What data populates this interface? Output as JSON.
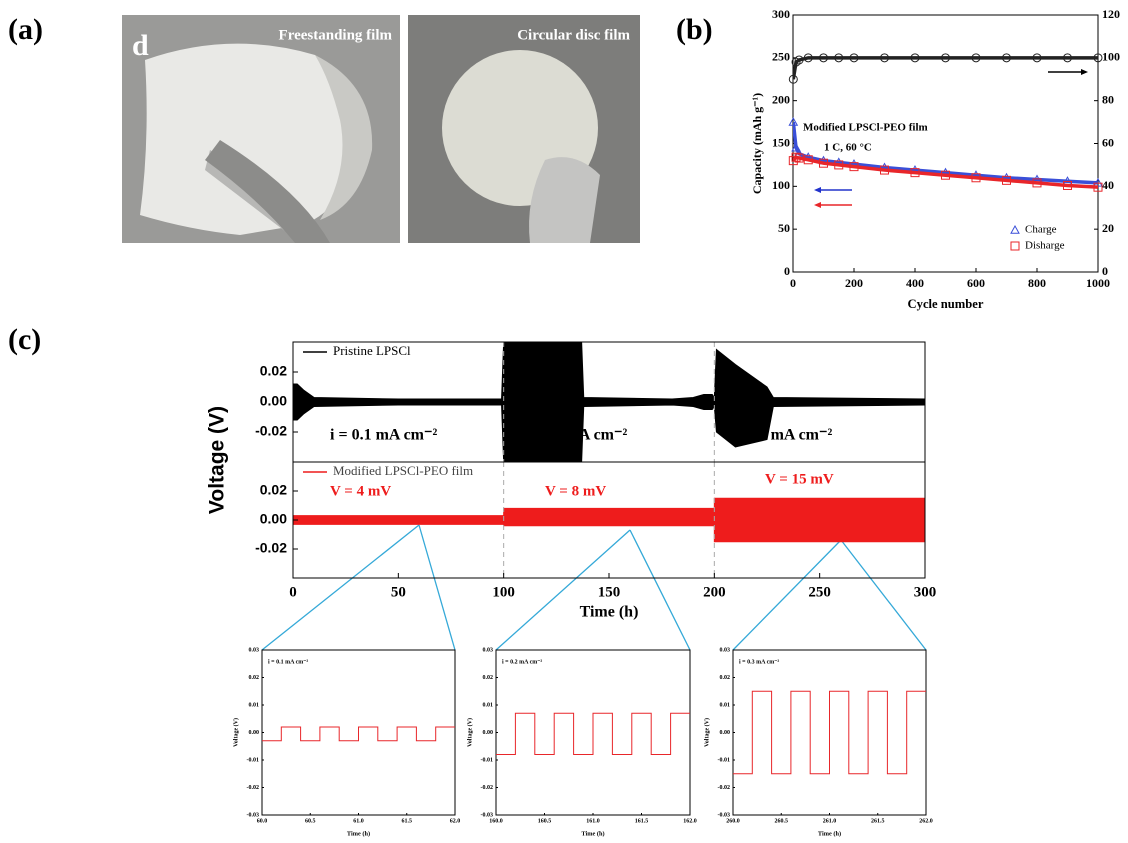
{
  "panel_labels": [
    "(a)",
    "(b)",
    "(c)"
  ],
  "photos": {
    "corner_letter": "d",
    "captions": [
      "Freestanding film",
      "Circular disc film"
    ]
  },
  "chart_data": [
    {
      "type": "line",
      "xlabel": "Cycle number",
      "ylabel": "Capacity (mAh g⁻¹)",
      "annotations": [
        "Modified LPSCl-PEO film",
        "1 C, 60 °C"
      ],
      "x": [
        1,
        10,
        20,
        50,
        100,
        150,
        200,
        300,
        400,
        500,
        600,
        700,
        800,
        900,
        1000
      ],
      "series": [
        {
          "name": "Charge",
          "color": "#3a4fd8",
          "marker": "triangle",
          "values": [
            175,
            145,
            138,
            134,
            130,
            128,
            126,
            122,
            119,
            116,
            113,
            110,
            108,
            106,
            104
          ]
        },
        {
          "name": "Disharge",
          "color": "#e8262a",
          "marker": "square",
          "values": [
            130,
            134,
            133,
            131,
            127,
            125,
            123,
            119,
            116,
            113,
            110,
            107,
            104,
            101,
            99
          ]
        },
        {
          "color": "#222222",
          "marker": "circle",
          "axis": "y2",
          "values": [
            90,
            98,
            99,
            100,
            100,
            100,
            100,
            100,
            100,
            100,
            100,
            100,
            100,
            100,
            100
          ]
        }
      ],
      "xlim": [
        0,
        1000
      ],
      "xticks": [
        0,
        200,
        400,
        600,
        800,
        1000
      ],
      "ylim": [
        0,
        300
      ],
      "yticks": [
        0,
        50,
        100,
        150,
        200,
        250,
        300
      ],
      "y2lim": [
        0,
        120
      ],
      "y2ticks": [
        0,
        20,
        40,
        60,
        80,
        100,
        120
      ]
    },
    {
      "type": "band",
      "xlabel": "Time (h)",
      "ylabel": "Voltage (V)",
      "xlim": [
        0,
        300
      ],
      "xticks": [
        0,
        50,
        100,
        150,
        200,
        250,
        300
      ],
      "vlines": [
        100,
        200
      ],
      "panels": [
        {
          "ylim": [
            -0.04,
            0.04
          ],
          "yticks": [
            0.02,
            {
              "value": 0,
              "label": "0.00"
            },
            -0.02
          ],
          "annotations": [
            "i = 0.1 mA cm⁻²",
            "i = 0.2 mA cm⁻²",
            "i = 0.3 mA cm⁻²"
          ],
          "series": [
            {
              "name": "Pristine LPSCl",
              "color": "#000000",
              "x": [
                0,
                2,
                5,
                10,
                50,
                99,
                100,
                101,
                137,
                138,
                180,
                190,
                195,
                199,
                200,
                201,
                210,
                225,
                228,
                300
              ],
              "values": [
                0.012,
                0.012,
                0.008,
                0.003,
                0.002,
                0.002,
                0.04,
                0.04,
                0.04,
                0.003,
                0.002,
                0.003,
                0.005,
                0.005,
                0.003,
                0.035,
                0.025,
                0.01,
                0.003,
                0.002
              ],
              "lower": [
                -0.012,
                -0.012,
                -0.008,
                -0.003,
                -0.002,
                -0.002,
                -0.04,
                -0.04,
                -0.04,
                -0.003,
                -0.002,
                -0.003,
                -0.005,
                -0.005,
                -0.003,
                -0.02,
                -0.03,
                -0.025,
                -0.003,
                -0.002
              ]
            }
          ]
        },
        {
          "ylim": [
            -0.04,
            0.04
          ],
          "yticks": [
            0.02,
            {
              "value": 0,
              "label": "0.00"
            },
            -0.02
          ],
          "annotations": [
            "V = 4 mV",
            "V = 8 mV",
            "V = 15 mV"
          ],
          "series": [
            {
              "name": "Modified LPSCl-PEO film",
              "color": "#ee1c1c",
              "x": [
                0,
                100,
                100,
                200,
                200,
                300
              ],
              "values": [
                0.003,
                0.003,
                0.008,
                0.008,
                0.015,
                0.015
              ],
              "lower": [
                -0.003,
                -0.003,
                -0.004,
                -0.004,
                -0.015,
                -0.015
              ]
            }
          ]
        }
      ]
    },
    {
      "type": "line",
      "xlabel": "Time (h)",
      "ylabel": "Voltage (V)",
      "annotations": [
        "i = 0.1 mA cm⁻²"
      ],
      "xlim": [
        60,
        62
      ],
      "xticks": [
        {
          "value": 60,
          "label": "60.0"
        },
        60.5,
        {
          "value": 61,
          "label": "61.0"
        },
        61.5,
        {
          "value": 62,
          "label": "62.0"
        }
      ],
      "ylim": [
        -0.03,
        0.03
      ],
      "yticks": [
        0.03,
        0.02,
        0.01,
        {
          "value": 0,
          "label": "0.00"
        },
        -0.01,
        -0.02,
        -0.03
      ],
      "x": [
        60,
        60.2,
        60.2,
        60.4,
        60.4,
        60.6,
        60.6,
        60.8,
        60.8,
        61,
        61,
        61.2,
        61.2,
        61.4,
        61.4,
        61.6,
        61.6,
        61.8,
        61.8,
        62
      ],
      "series": [
        {
          "color": "#e8262a",
          "values": [
            -0.003,
            -0.003,
            0.002,
            0.002,
            -0.003,
            -0.003,
            0.002,
            0.002,
            -0.003,
            -0.003,
            0.002,
            0.002,
            -0.003,
            -0.003,
            0.002,
            0.002,
            -0.003,
            -0.003,
            0.002,
            0.002
          ]
        }
      ]
    },
    {
      "type": "line",
      "xlabel": "Time (h)",
      "ylabel": "Voltage (V)",
      "annotations": [
        "i = 0.2 mA cm⁻²"
      ],
      "xlim": [
        160,
        162
      ],
      "xticks": [
        {
          "value": 160,
          "label": "160.0"
        },
        160.5,
        {
          "value": 161,
          "label": "161.0"
        },
        161.5,
        {
          "value": 162,
          "label": "162.0"
        }
      ],
      "ylim": [
        -0.03,
        0.03
      ],
      "yticks": [
        0.03,
        0.02,
        0.01,
        {
          "value": 0,
          "label": "0.00"
        },
        -0.01,
        -0.02,
        -0.03
      ],
      "x": [
        160,
        160.2,
        160.2,
        160.4,
        160.4,
        160.6,
        160.6,
        160.8,
        160.8,
        161,
        161,
        161.2,
        161.2,
        161.4,
        161.4,
        161.6,
        161.6,
        161.8,
        161.8,
        162
      ],
      "series": [
        {
          "color": "#e8262a",
          "values": [
            -0.008,
            -0.008,
            0.007,
            0.007,
            -0.008,
            -0.008,
            0.007,
            0.007,
            -0.008,
            -0.008,
            0.007,
            0.007,
            -0.008,
            -0.008,
            0.007,
            0.007,
            -0.008,
            -0.008,
            0.007,
            0.007
          ]
        }
      ]
    },
    {
      "type": "line",
      "xlabel": "Time (h)",
      "ylabel": "Voltage (V)",
      "annotations": [
        "i = 0.3 mA cm⁻²"
      ],
      "xlim": [
        260,
        262
      ],
      "xticks": [
        {
          "value": 260,
          "label": "260.0"
        },
        260.5,
        {
          "value": 261,
          "label": "261.0"
        },
        261.5,
        {
          "value": 262,
          "label": "262.0"
        }
      ],
      "ylim": [
        -0.03,
        0.03
      ],
      "yticks": [
        0.03,
        0.02,
        0.01,
        {
          "value": 0,
          "label": "0.00"
        },
        -0.01,
        -0.02,
        -0.03
      ],
      "x": [
        260,
        260.2,
        260.2,
        260.4,
        260.4,
        260.6,
        260.6,
        260.8,
        260.8,
        261,
        261,
        261.2,
        261.2,
        261.4,
        261.4,
        261.6,
        261.6,
        261.8,
        261.8,
        262
      ],
      "series": [
        {
          "color": "#e8262a",
          "values": [
            -0.015,
            -0.015,
            0.015,
            0.015,
            -0.015,
            -0.015,
            0.015,
            0.015,
            -0.015,
            -0.015,
            0.015,
            0.015,
            -0.015,
            -0.015,
            0.015,
            0.015,
            -0.015,
            -0.015,
            0.015,
            0.015
          ]
        }
      ]
    }
  ]
}
